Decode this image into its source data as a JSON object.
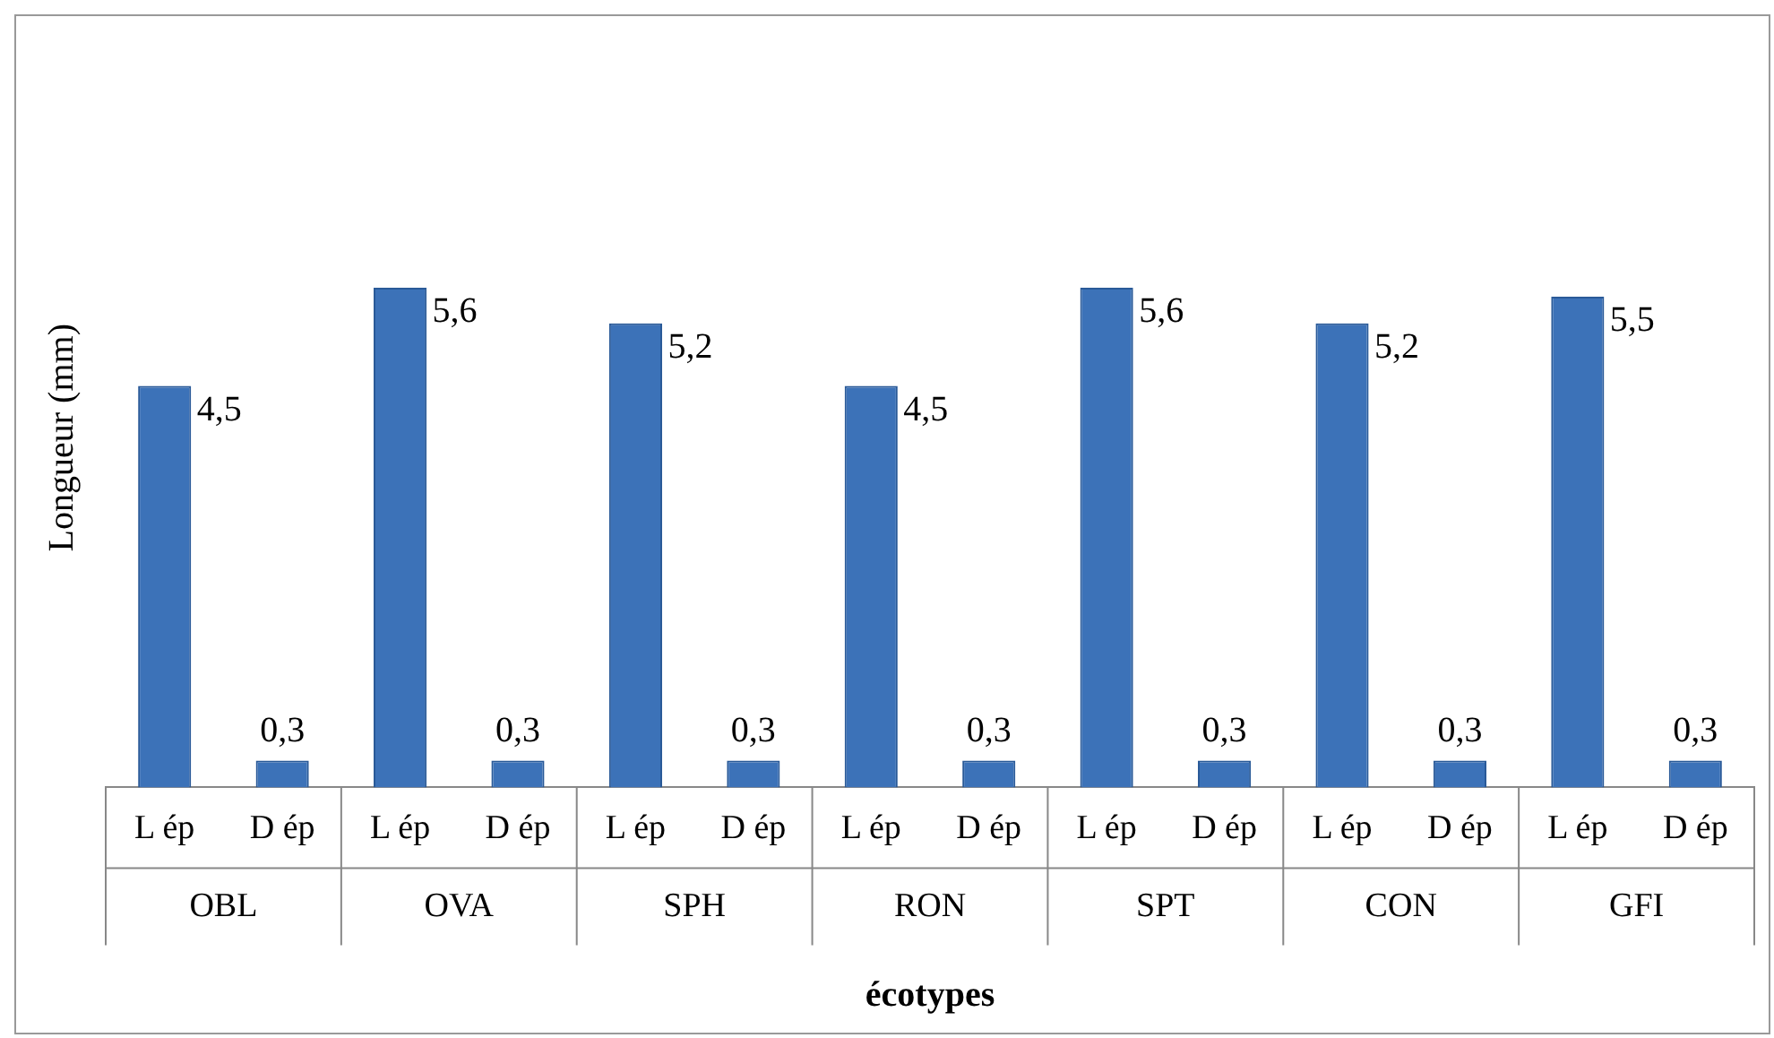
{
  "chart_data": {
    "type": "bar",
    "ylabel": "Longueur (mm)",
    "xlabel": "écotypes",
    "categories": [
      "L ép",
      "D ép",
      "L ép",
      "D ép",
      "L ép",
      "D ép",
      "L ép",
      "D ép",
      "L ép",
      "D ép",
      "L ép",
      "D ép",
      "L ép",
      "D ép"
    ],
    "annotations": [
      "OBL",
      "OVA",
      "SPH",
      "RON",
      "SPT",
      "CON",
      "GFI"
    ],
    "series": [
      {
        "color": "#3c72b8",
        "values": [
          4.5,
          0.3,
          5.6,
          0.3,
          5.2,
          0.3,
          4.5,
          0.3,
          5.6,
          0.3,
          5.2,
          0.3,
          5.5,
          0.3
        ],
        "value_labels": [
          "4,5",
          "0,3",
          "5,6",
          "0,3",
          "5,2",
          "0,3",
          "4,5",
          "0,3",
          "5,6",
          "0,3",
          "5,2",
          "0,3",
          "5,5",
          "0,3"
        ]
      }
    ],
    "grid": false,
    "legend": false
  }
}
